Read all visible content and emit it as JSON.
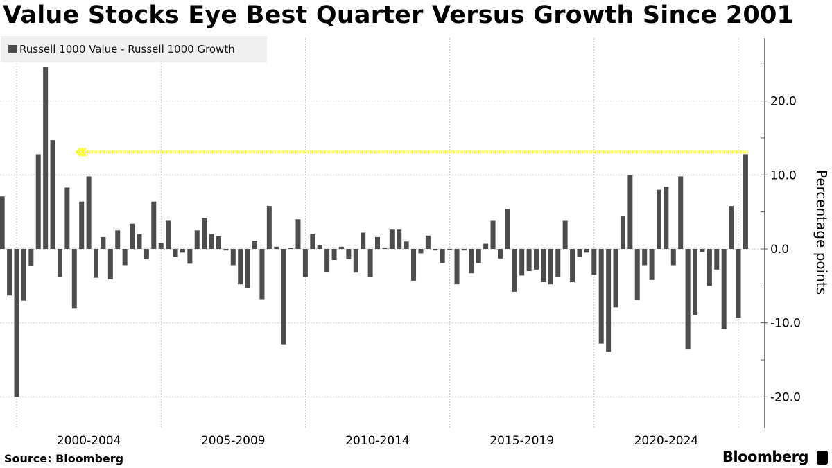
{
  "title": "Value Stocks Eye Best Quarter Versus Growth Since 2001",
  "source": "Source: Bloomberg",
  "brand": "Bloomberg",
  "chart_data": {
    "type": "bar",
    "title": "Value Stocks Eye Best Quarter Versus Growth Since 2001",
    "ylabel": "Percentage points",
    "xlabel": "",
    "legend": {
      "position": "top-left",
      "entries": [
        "Russell 1000 Value - Russell 1000 Growth"
      ]
    },
    "series": [
      {
        "name": "Russell 1000 Value - Russell 1000 Growth",
        "color": "#4d4d4d",
        "values": [
          7.1,
          -6.3,
          -20.0,
          -7.0,
          -2.3,
          12.8,
          24.6,
          14.7,
          -3.8,
          8.3,
          -8.0,
          6.4,
          9.8,
          -3.9,
          1.6,
          -4.1,
          2.5,
          -2.2,
          3.4,
          2.0,
          -1.4,
          6.4,
          0.8,
          3.8,
          -1.1,
          -0.5,
          -2.0,
          2.5,
          4.2,
          2.0,
          1.7,
          -0.2,
          -2.2,
          -4.8,
          -5.3,
          1.1,
          -6.8,
          5.8,
          0.3,
          -12.9,
          0.1,
          4.0,
          -3.8,
          2.0,
          0.5,
          -3.1,
          -1.5,
          0.3,
          -1.4,
          -3.2,
          2.2,
          -3.8,
          1.6,
          0.2,
          2.6,
          2.6,
          1.0,
          -4.3,
          -0.6,
          1.8,
          -0.2,
          -1.9,
          -0.1,
          -4.8,
          -0.2,
          -3.3,
          -1.9,
          0.7,
          3.8,
          -1.3,
          5.4,
          -5.8,
          -3.6,
          -3.0,
          -2.8,
          -4.5,
          -4.8,
          -3.8,
          3.8,
          -4.5,
          -1.1,
          -0.5,
          -3.5,
          -12.8,
          -13.9,
          -7.9,
          4.4,
          10.0,
          -6.9,
          -2.2,
          -4.2,
          8.0,
          8.4,
          -2.2,
          9.8,
          -13.6,
          -9.0,
          -0.4,
          -5.0,
          -2.8,
          -10.8,
          5.8,
          -9.3,
          12.8
        ]
      }
    ],
    "x_tick_labels": [
      "2000-2004",
      "2005-2009",
      "2010-2014",
      "2015-2019",
      "2020-2024"
    ],
    "y_ticks": [
      20.0,
      10.0,
      0.0,
      -10.0,
      -20.0
    ],
    "y_tick_labels": [
      "20.0",
      "10.0",
      "0.0",
      "-10.0",
      "-20.0"
    ],
    "ylim": [
      -24.5,
      28.5
    ],
    "y_axis_side": "right",
    "grid": true,
    "reference_line": {
      "value": 13.1,
      "color": "#ffff00",
      "style": "dotted",
      "arrow": "left"
    }
  }
}
